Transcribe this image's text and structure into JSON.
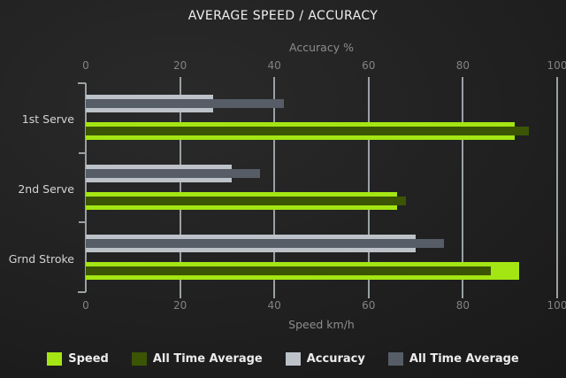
{
  "chart_data": {
    "type": "bar",
    "orientation": "horizontal",
    "title": "AVERAGE SPEED / ACCURACY",
    "categories": [
      "1st Serve",
      "2nd Serve",
      "Grnd Stroke"
    ],
    "axes": {
      "top": {
        "label": "Accuracy %",
        "range": [
          0,
          100
        ],
        "ticks": [
          0,
          20,
          40,
          60,
          80,
          100
        ]
      },
      "bottom": {
        "label": "Speed km/h",
        "range": [
          0,
          100
        ],
        "ticks": [
          0,
          20,
          40,
          60,
          80,
          100
        ]
      }
    },
    "series": [
      {
        "id": "speed",
        "label": "Speed",
        "axis": "bottom",
        "style": "main",
        "color": "#a4e613",
        "values": [
          91,
          66,
          92
        ]
      },
      {
        "id": "speed_all_time_average",
        "label": "All Time Average",
        "axis": "bottom",
        "style": "overlay",
        "color": "#3b5505",
        "values": [
          94,
          68,
          86
        ]
      },
      {
        "id": "accuracy",
        "label": "Accuracy",
        "axis": "top",
        "style": "main",
        "color": "#bcc2c8",
        "values": [
          27,
          31,
          70
        ]
      },
      {
        "id": "accuracy_all_time_average",
        "label": "All Time Average",
        "axis": "top",
        "style": "overlay",
        "color": "#565d66",
        "values": [
          42,
          37,
          76
        ]
      }
    ],
    "legend": [
      {
        "label": "Speed",
        "color": "#a4e613"
      },
      {
        "label": "All Time Average",
        "color": "#3b5505"
      },
      {
        "label": "Accuracy",
        "color": "#bcc2c8"
      },
      {
        "label": "All Time Average",
        "color": "#565d66"
      }
    ],
    "grid": {
      "show": true,
      "color": "#9aa0a4"
    },
    "legend_position": "bottom",
    "colors": {
      "background": "#1e1e1e",
      "title": "#f0f0f0",
      "tick_label": "#828282",
      "category_label": "#d4d4d4"
    }
  }
}
